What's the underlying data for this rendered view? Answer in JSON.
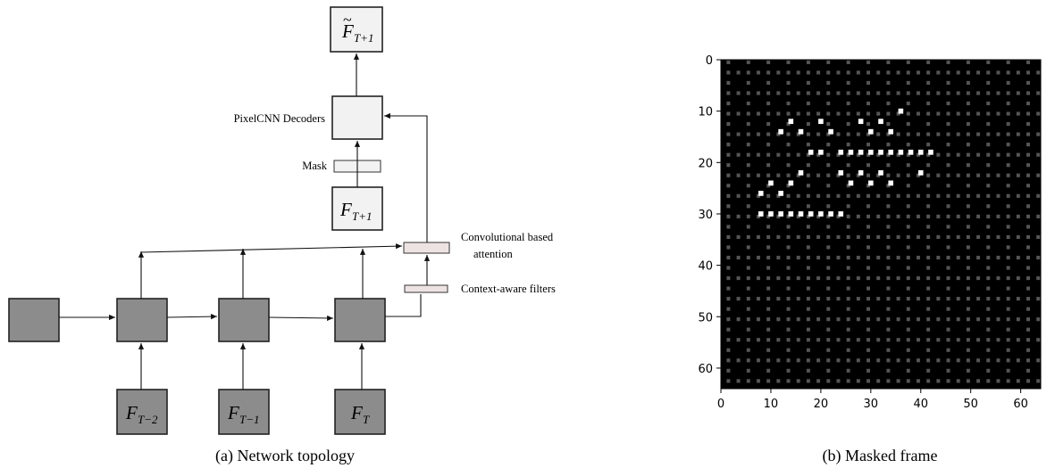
{
  "diagram": {
    "labels": {
      "pixelcnn": "PixelCNN Decoders",
      "mask": "Mask",
      "attention_line1": "Convolutional based",
      "attention_line2": "attention",
      "context_filters": "Context-aware filters"
    },
    "outputs": {
      "predicted": {
        "symbol": "F",
        "tilde": "~",
        "subscript": "T+1"
      },
      "target": {
        "symbol": "F",
        "subscript": "T+1"
      }
    },
    "inputs": [
      {
        "symbol": "F",
        "subscript": "T−2"
      },
      {
        "symbol": "F",
        "subscript": "T−1"
      },
      {
        "symbol": "F",
        "subscript": "T"
      }
    ],
    "caption": "(a) Network topology",
    "colors": {
      "node": "#8c8c8c",
      "light_box": "#f2f2f2",
      "filter": "#eee3e3"
    }
  },
  "chart_data": {
    "type": "heatmap",
    "caption": "(b) Masked frame",
    "xlim": [
      0,
      64
    ],
    "ylim": [
      64,
      0
    ],
    "xticks": [
      0,
      10,
      20,
      30,
      40,
      50,
      60
    ],
    "yticks": [
      0,
      10,
      20,
      30,
      40,
      50,
      60
    ],
    "background_color": "#000000",
    "mask_color": "#555555",
    "pixel_color": "#ffffff",
    "mask_grid_period": 4,
    "bright_pixels": [
      [
        36,
        10
      ],
      [
        14,
        12
      ],
      [
        20,
        12
      ],
      [
        28,
        12
      ],
      [
        32,
        12
      ],
      [
        12,
        14
      ],
      [
        16,
        14
      ],
      [
        22,
        14
      ],
      [
        30,
        14
      ],
      [
        34,
        14
      ],
      [
        18,
        18
      ],
      [
        20,
        18
      ],
      [
        24,
        18
      ],
      [
        26,
        18
      ],
      [
        28,
        18
      ],
      [
        30,
        18
      ],
      [
        32,
        18
      ],
      [
        34,
        18
      ],
      [
        36,
        18
      ],
      [
        38,
        18
      ],
      [
        40,
        18
      ],
      [
        42,
        18
      ],
      [
        16,
        22
      ],
      [
        24,
        22
      ],
      [
        28,
        22
      ],
      [
        32,
        22
      ],
      [
        40,
        22
      ],
      [
        10,
        24
      ],
      [
        14,
        24
      ],
      [
        26,
        24
      ],
      [
        30,
        24
      ],
      [
        34,
        24
      ],
      [
        8,
        26
      ],
      [
        12,
        26
      ],
      [
        8,
        30
      ],
      [
        10,
        30
      ],
      [
        12,
        30
      ],
      [
        14,
        30
      ],
      [
        16,
        30
      ],
      [
        18,
        30
      ],
      [
        20,
        30
      ],
      [
        22,
        30
      ],
      [
        24,
        30
      ]
    ]
  }
}
